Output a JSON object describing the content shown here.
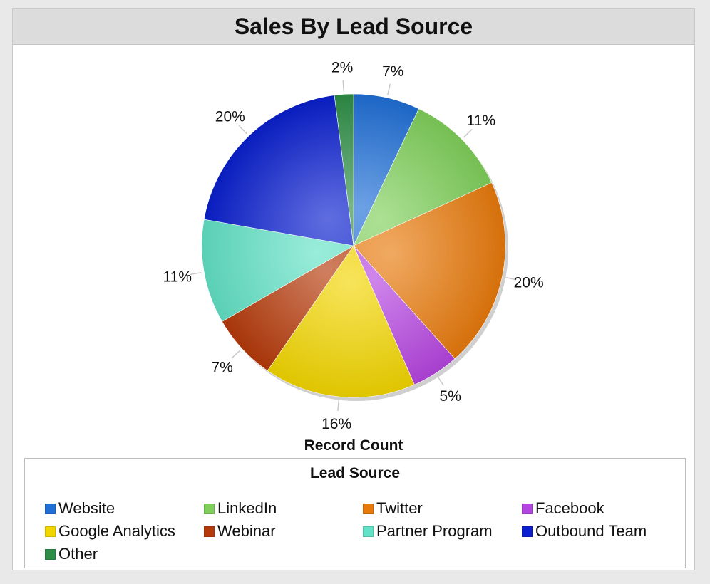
{
  "chart_data": {
    "type": "pie",
    "title": "Sales By Lead Source",
    "measure_label": "Record Count",
    "legend_title": "Lead Source",
    "legend_position": "bottom",
    "slices": [
      {
        "name": "Website",
        "value": 7,
        "label": "7%",
        "color": "#1f6fd6"
      },
      {
        "name": "LinkedIn",
        "value": 11,
        "label": "11%",
        "color": "#7fd05a"
      },
      {
        "name": "Twitter",
        "value": 20,
        "label": "20%",
        "color": "#e87a0c"
      },
      {
        "name": "Facebook",
        "value": 5,
        "label": "5%",
        "color": "#b545e0"
      },
      {
        "name": "Google Analytics",
        "value": 16,
        "label": "16%",
        "color": "#f2d600"
      },
      {
        "name": "Webinar",
        "value": 7,
        "label": "7%",
        "color": "#b53a0a"
      },
      {
        "name": "Partner Program",
        "value": 11,
        "label": "11%",
        "color": "#62e2c6"
      },
      {
        "name": "Outbound Team",
        "value": 20,
        "label": "20%",
        "color": "#0a1fcf"
      },
      {
        "name": "Other",
        "value": 2,
        "label": "2%",
        "color": "#2e8e47"
      }
    ]
  }
}
